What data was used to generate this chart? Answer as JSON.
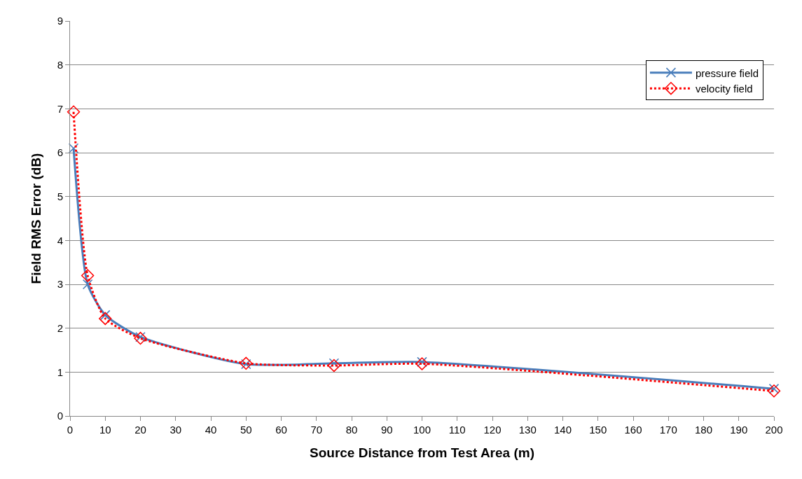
{
  "chart_data": {
    "type": "line",
    "xlabel": "Source Distance from Test Area (m)",
    "ylabel": "Field RMS Error (dB)",
    "x": [
      1,
      5,
      10,
      20,
      50,
      75,
      100,
      200
    ],
    "series": [
      {
        "name": "pressure field",
        "color": "#4a7ebb",
        "marker": "cross",
        "line_style": "solid",
        "values": [
          6.1,
          3.0,
          2.3,
          1.8,
          1.18,
          1.2,
          1.23,
          0.62
        ]
      },
      {
        "name": "velocity field",
        "color": "#ff0000",
        "marker": "diamond",
        "line_style": "dotted",
        "values": [
          6.93,
          3.2,
          2.22,
          1.77,
          1.2,
          1.15,
          1.19,
          0.57
        ]
      }
    ],
    "xlim": [
      0,
      200
    ],
    "xticks": [
      0,
      10,
      20,
      30,
      40,
      50,
      60,
      70,
      80,
      90,
      100,
      110,
      120,
      130,
      140,
      150,
      160,
      170,
      180,
      190,
      200
    ],
    "ylim": [
      0,
      9
    ],
    "yticks": [
      0,
      1,
      2,
      3,
      4,
      5,
      6,
      7,
      8,
      9
    ],
    "grid": "y",
    "legend": "top right"
  }
}
